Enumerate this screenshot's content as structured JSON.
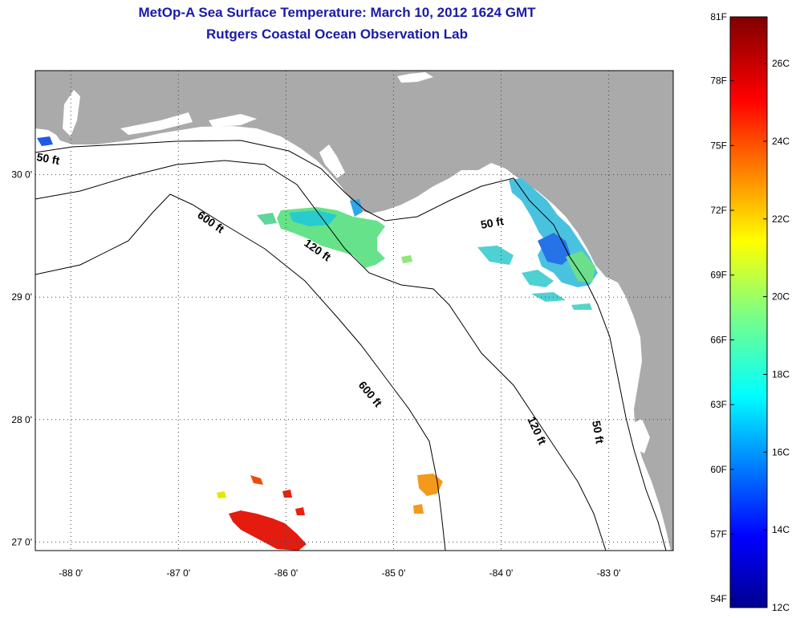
{
  "header": {
    "title": "MetOp-A Sea Surface Temperature:  March 10, 2012 1624 GMT",
    "subtitle": "Rutgers Coastal Ocean Observation Lab"
  },
  "map": {
    "lon_range": [
      -88.33,
      -82.4
    ],
    "lat_range": [
      26.93,
      30.85
    ],
    "lon_ticks": [
      {
        "value": -88,
        "label": "-88 0'"
      },
      {
        "value": -87,
        "label": "-87 0'"
      },
      {
        "value": -86,
        "label": "-86 0'"
      },
      {
        "value": -85,
        "label": "-85 0'"
      },
      {
        "value": -84,
        "label": "-84 0'"
      },
      {
        "value": -83,
        "label": "-83 0'"
      }
    ],
    "lat_ticks": [
      {
        "value": 30,
        "label": "30 0'"
      },
      {
        "value": 29,
        "label": "29 0'"
      },
      {
        "value": 28,
        "label": "28 0'"
      },
      {
        "value": 27,
        "label": "27 0'"
      }
    ],
    "land_color": "#aaaaaa",
    "contour_labels": [
      "50 ft",
      "600 ft",
      "120 ft",
      "50 ft",
      "600 ft",
      "120 ft",
      "50 ft"
    ]
  },
  "colorbar": {
    "min_c": 12,
    "max_c": 27.2,
    "f_labels": [
      "81F",
      "78F",
      "75F",
      "72F",
      "69F",
      "66F",
      "63F",
      "60F",
      "57F",
      "54F"
    ],
    "c_labels": [
      "26C",
      "24C",
      "22C",
      "20C",
      "18C",
      "16C",
      "14C",
      "12C"
    ]
  }
}
